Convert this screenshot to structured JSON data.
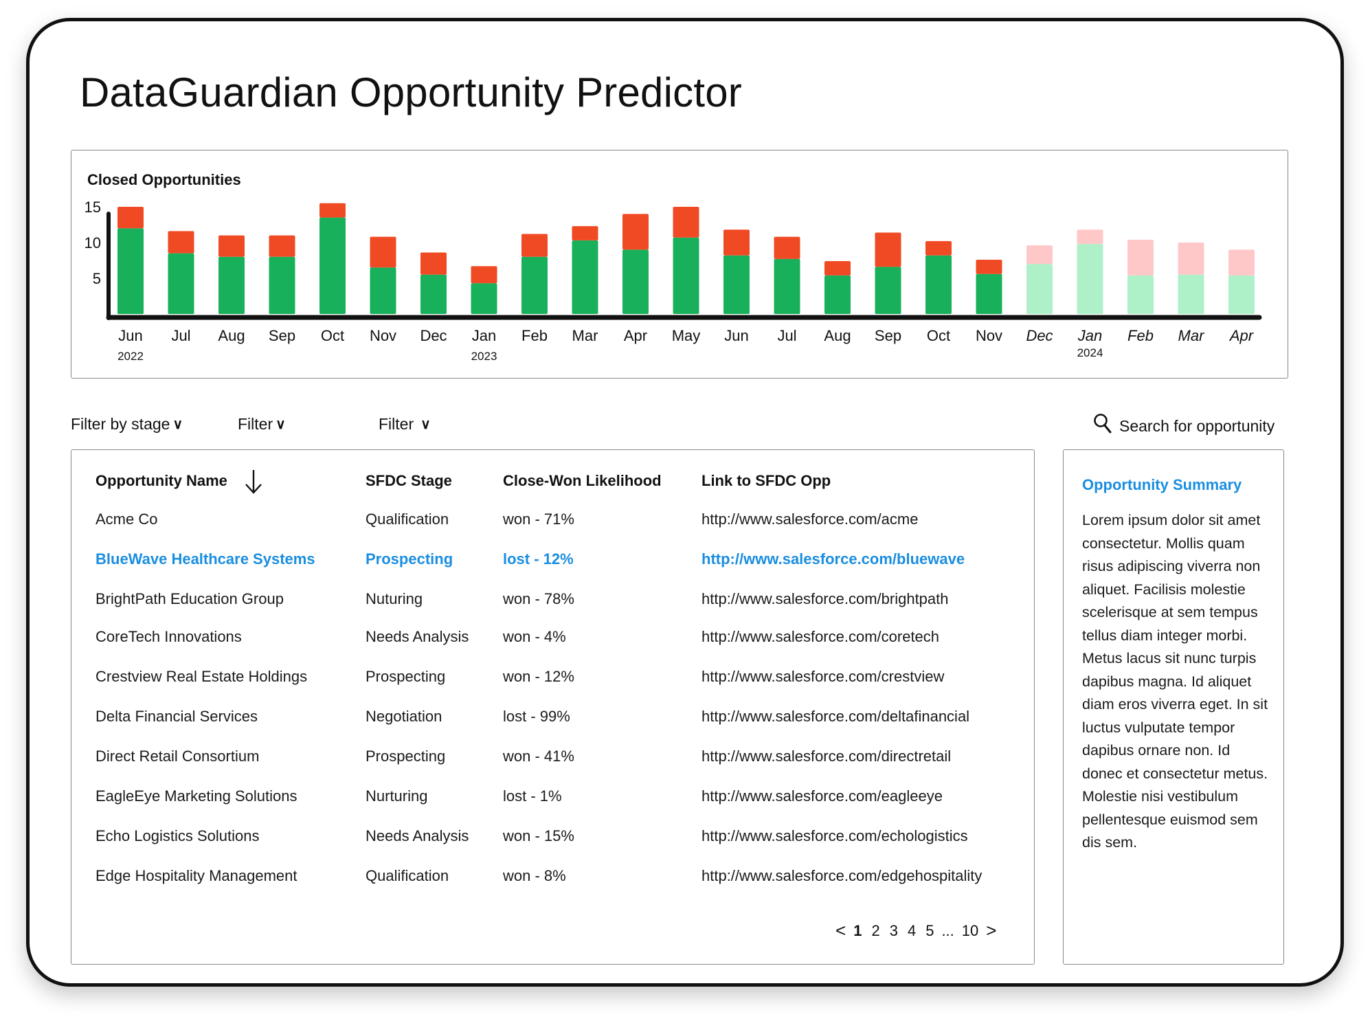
{
  "app": {
    "title": "DataGuardian Opportunity Predictor"
  },
  "colors": {
    "won": "#18b05a",
    "lost": "#f04a24",
    "won_forecast": "#aef0c8",
    "lost_forecast": "#ffc8c8",
    "accent_link": "#1a8ee0"
  },
  "chart_data": {
    "type": "bar",
    "stacked": true,
    "title": "Closed Opportunities",
    "categories": [
      "Jun",
      "Jul",
      "Aug",
      "Sep",
      "Oct",
      "Nov",
      "Dec",
      "Jan",
      "Feb",
      "Mar",
      "Apr",
      "May",
      "Jun",
      "Jul",
      "Aug",
      "Sep",
      "Oct",
      "Nov",
      "Dec",
      "Jan",
      "Feb",
      "Mar",
      "Apr"
    ],
    "year_labels": [
      {
        "index": 0,
        "label": "2022"
      },
      {
        "index": 7,
        "label": "2023"
      },
      {
        "index": 19,
        "label": "2024"
      }
    ],
    "forecast_from_index": 18,
    "series": [
      {
        "values": [
          12,
          8.5,
          8,
          8,
          13.5,
          6.5,
          5.5,
          4.3,
          8,
          10.3,
          9,
          10.7,
          8.2,
          7.7,
          5.4,
          6.6,
          8.2,
          5.6,
          7,
          9.8,
          5.4,
          5.5,
          5.4
        ]
      },
      {
        "values": [
          3,
          3.1,
          3,
          3,
          2,
          4.3,
          3.1,
          2.4,
          3.2,
          2,
          5,
          4.3,
          3.6,
          3.1,
          2,
          4.8,
          2,
          2,
          2.6,
          2,
          5,
          4.5,
          3.6
        ]
      }
    ],
    "yticks": [
      5,
      10,
      15
    ],
    "ylim": [
      0,
      16
    ]
  },
  "filters": [
    {
      "label": "Filter by stage"
    },
    {
      "label": "Filter"
    },
    {
      "label": "Filter"
    }
  ],
  "search": {
    "label": "Search for opportunity"
  },
  "table": {
    "headers": [
      "Opportunity Name",
      "SFDC Stage",
      "Close-Won Likelihood",
      "Link to SFDC Opp"
    ],
    "rows": [
      {
        "name": "Acme Co",
        "stage": "Qualification",
        "likelihood": "won - 71%",
        "link": "http://www.salesforce.com/acme"
      },
      {
        "name": "BlueWave Healthcare Systems",
        "stage": "Prospecting",
        "likelihood": "lost - 12%",
        "link": "http://www.salesforce.com/bluewave",
        "selected": true
      },
      {
        "name": "BrightPath Education Group",
        "stage": "Nuturing",
        "likelihood": "won - 78%",
        "link": "http://www.salesforce.com/brightpath"
      },
      {
        "name": "CoreTech Innovations",
        "stage": "Needs Analysis",
        "likelihood": "won - 4%",
        "link": "http://www.salesforce.com/coretech"
      },
      {
        "name": "Crestview Real Estate Holdings",
        "stage": "Prospecting",
        "likelihood": "won - 12%",
        "link": "http://www.salesforce.com/crestview"
      },
      {
        "name": "Delta Financial Services",
        "stage": "Negotiation",
        "likelihood": "lost - 99%",
        "link": "http://www.salesforce.com/deltafinancial"
      },
      {
        "name": "Direct Retail Consortium",
        "stage": "Prospecting",
        "likelihood": "won - 41%",
        "link": "http://www.salesforce.com/directretail"
      },
      {
        "name": "EagleEye Marketing Solutions",
        "stage": "Nurturing",
        "likelihood": "lost - 1%",
        "link": "http://www.salesforce.com/eagleeye"
      },
      {
        "name": "Echo Logistics Solutions",
        "stage": "Needs Analysis",
        "likelihood": "won - 15%",
        "link": "http://www.salesforce.com/echologistics"
      },
      {
        "name": "Edge Hospitality Management",
        "stage": "Qualification",
        "likelihood": "won - 8%",
        "link": "http://www.salesforce.com/edgehospitality"
      }
    ]
  },
  "pagination": {
    "prev": "<",
    "pages": [
      "1",
      "2",
      "3",
      "4",
      "5"
    ],
    "ellipsis": "...",
    "last": "10",
    "next": ">",
    "current": "1"
  },
  "summary": {
    "title": "Opportunity Summary",
    "body": "Lorem ipsum dolor sit amet consectetur. Mollis quam risus adipiscing viverra non aliquet. Facilisis molestie scelerisque at sem tempus tellus diam integer morbi. Metus lacus sit nunc turpis dapibus magna. Id aliquet diam eros viverra eget. In sit luctus vulputate tempor dapibus ornare non. Id donec et consectetur metus. Molestie nisi vestibulum pellentesque euismod sem dis sem."
  }
}
